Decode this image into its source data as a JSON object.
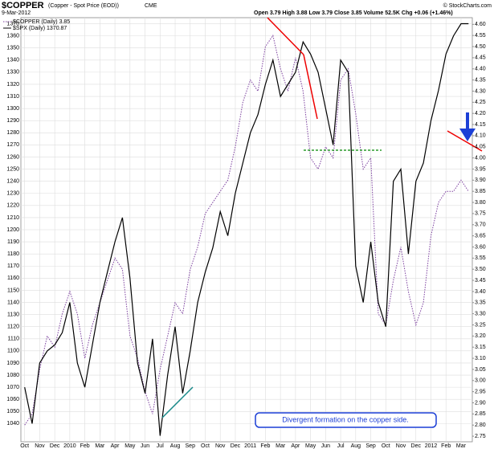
{
  "chart_data": {
    "type": "line",
    "title": "$COPPER",
    "subtitle": "(Copper - Spot Price (EOD))",
    "exchange": "CME",
    "date": "9-Mar-2012",
    "quote": "Open 3.79  High 3.88  Low 3.79  Close 3.85  Volume 52.5K  Chg +0.06 (+1.46%)",
    "credit": "© StockCharts.com",
    "annotation": "Divergent formation on the copper side.",
    "categories": [
      "Oct",
      null,
      "Nov",
      null,
      "Dec",
      null,
      "2010",
      null,
      "Feb",
      null,
      "Mar",
      null,
      "Apr",
      null,
      "May",
      null,
      "Jun",
      null,
      "Jul",
      null,
      "Aug",
      null,
      "Sep",
      null,
      "Oct",
      null,
      "Nov",
      null,
      "Dec",
      null,
      "2011",
      null,
      "Feb",
      null,
      "Mar",
      null,
      "Apr",
      null,
      "May",
      null,
      "Jun",
      null,
      "Jul",
      null,
      "Aug",
      null,
      "Sep",
      null,
      "Oct",
      null,
      "Nov",
      null,
      "Dec",
      null,
      "2012",
      null,
      "Feb",
      null,
      "Mar",
      null
    ],
    "series": [
      {
        "name": "$COPPER (Daily) 3.85",
        "color": "#7b3f9e",
        "style": "dotted",
        "axis": "y2",
        "values": [
          2.8,
          2.85,
          3.05,
          3.2,
          3.15,
          3.3,
          3.4,
          3.3,
          3.1,
          3.25,
          3.35,
          3.45,
          3.55,
          3.5,
          3.2,
          3.1,
          2.95,
          2.85,
          3.05,
          3.2,
          3.35,
          3.3,
          3.5,
          3.6,
          3.75,
          3.8,
          3.85,
          3.9,
          4.05,
          4.25,
          4.35,
          4.3,
          4.5,
          4.55,
          4.4,
          4.3,
          4.45,
          4.3,
          4.0,
          3.95,
          4.05,
          4.0,
          4.35,
          4.4,
          4.2,
          3.95,
          4.0,
          3.3,
          3.25,
          3.45,
          3.6,
          3.4,
          3.25,
          3.35,
          3.65,
          3.8,
          3.85,
          3.85,
          3.9,
          3.85
        ]
      },
      {
        "name": "$SPX (Daily) 1370.87",
        "color": "#000000",
        "style": "solid",
        "values": [
          1070,
          1040,
          1090,
          1100,
          1105,
          1115,
          1140,
          1090,
          1070,
          1105,
          1140,
          1165,
          1190,
          1210,
          1160,
          1090,
          1065,
          1110,
          1030,
          1080,
          1120,
          1065,
          1100,
          1140,
          1165,
          1185,
          1215,
          1195,
          1230,
          1255,
          1280,
          1295,
          1320,
          1340,
          1310,
          1320,
          1330,
          1355,
          1345,
          1330,
          1300,
          1270,
          1340,
          1330,
          1170,
          1140,
          1190,
          1140,
          1120,
          1240,
          1250,
          1180,
          1240,
          1255,
          1290,
          1315,
          1345,
          1360,
          1370,
          1370
        ]
      }
    ],
    "ylim": [
      1025,
      1375
    ],
    "yticks": [
      1040,
      1050,
      1060,
      1070,
      1080,
      1090,
      1100,
      1110,
      1120,
      1130,
      1140,
      1150,
      1160,
      1170,
      1180,
      1190,
      1200,
      1210,
      1220,
      1230,
      1240,
      1250,
      1260,
      1270,
      1280,
      1290,
      1300,
      1310,
      1320,
      1330,
      1340,
      1350,
      1360,
      1370
    ],
    "y2lim": [
      2.725,
      4.63
    ],
    "y2ticks": [
      2.75,
      {
        "value": 2.8,
        "label": "2.80"
      },
      2.85,
      {
        "value": 2.9,
        "label": "2.90"
      },
      2.95,
      {
        "value": 3,
        "label": "3.00"
      },
      3.05,
      {
        "value": 3.1,
        "label": "3.10"
      },
      3.15,
      {
        "value": 3.2,
        "label": "3.20"
      },
      3.25,
      {
        "value": 3.3,
        "label": "3.30"
      },
      3.35,
      {
        "value": 3.4,
        "label": "3.40"
      },
      3.45,
      {
        "value": 3.5,
        "label": "3.50"
      },
      3.55,
      {
        "value": 3.6,
        "label": "3.60"
      },
      3.65,
      {
        "value": 3.7,
        "label": "3.70"
      },
      3.75,
      {
        "value": 3.8,
        "label": "3.80"
      },
      3.85,
      {
        "value": 3.9,
        "label": "3.90"
      },
      3.95,
      {
        "value": 4,
        "label": "4.00"
      },
      4.05,
      {
        "value": 4.1,
        "label": "4.10"
      },
      4.15,
      {
        "value": 4.2,
        "label": "4.20"
      },
      4.25,
      {
        "value": 4.3,
        "label": "4.30"
      },
      4.35,
      {
        "value": 4.4,
        "label": "4.40"
      },
      4.45,
      {
        "value": 4.5,
        "label": "4.50"
      },
      4.55,
      {
        "value": 4.6,
        "label": "4.60"
      }
    ],
    "grid": true
  }
}
